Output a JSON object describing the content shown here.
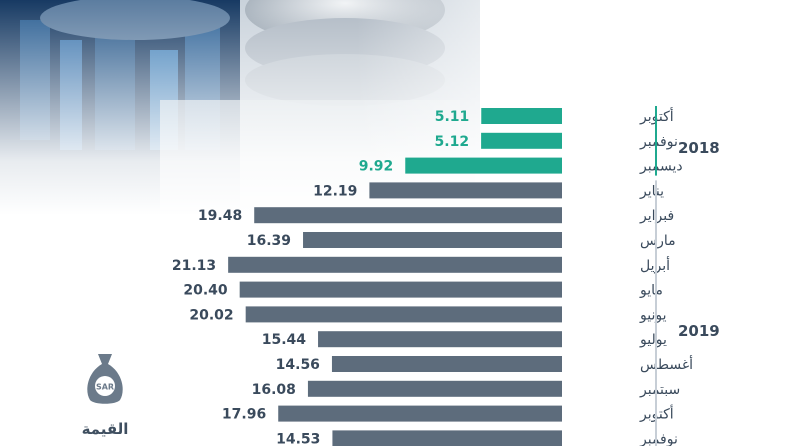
{
  "year_labels": [
    "2018",
    "2019"
  ],
  "icon_badge": "SAR",
  "caption": "القيمة",
  "colors": {
    "bar_2018": "#1fa98f",
    "bar_2019": "#5d6c7c",
    "text": "#3a4a5c",
    "year_line_2018": "#1fa98f",
    "year_line_2019": "#c7ced6"
  },
  "chart_data": {
    "type": "bar",
    "orientation": "horizontal",
    "title": "",
    "xlabel": "",
    "ylabel": "",
    "xlim": [
      0,
      23.5
    ],
    "categories": [
      "أكتوبر",
      "نوفمبر",
      "ديسمبر",
      "يناير",
      "فبراير",
      "مارس",
      "أبريل",
      "مايو",
      "يونيو",
      "يوليو",
      "أغسطس",
      "سبتمبر",
      "أكتوبر",
      "نوفمبر"
    ],
    "category_years": [
      "2018",
      "2018",
      "2018",
      "2019",
      "2019",
      "2019",
      "2019",
      "2019",
      "2019",
      "2019",
      "2019",
      "2019",
      "2019",
      "2019"
    ],
    "values": [
      5.11,
      5.12,
      9.92,
      12.19,
      19.48,
      16.39,
      21.13,
      20.4,
      20.02,
      15.44,
      14.56,
      16.08,
      17.96,
      14.53
    ],
    "value_labels": [
      "5.11",
      "5.12",
      "9.92",
      "12.19",
      "19.48",
      "16.39",
      "21.13",
      "20.40",
      "20.02",
      "15.44",
      "14.56",
      "16.08",
      "17.96",
      "14.53"
    ]
  }
}
